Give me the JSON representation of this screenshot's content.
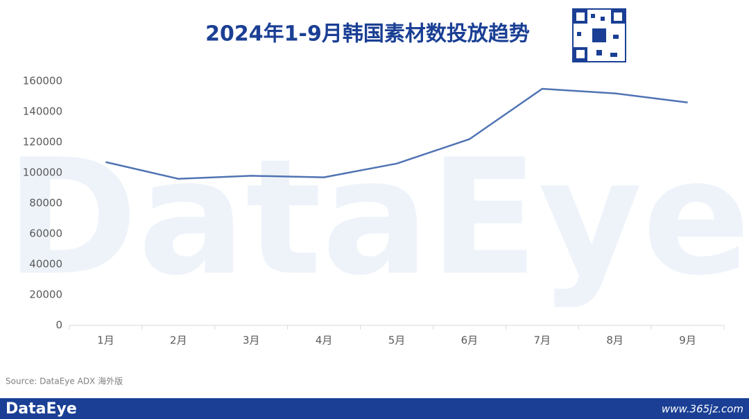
{
  "chart_data": {
    "type": "line",
    "title": "2024年1-9月韩国素材数投放趋势",
    "categories": [
      "1月",
      "2月",
      "3月",
      "4月",
      "5月",
      "6月",
      "7月",
      "8月",
      "9月"
    ],
    "values": [
      107000,
      96000,
      98000,
      97000,
      106000,
      122000,
      155000,
      152000,
      146000
    ],
    "color": "#4f73b3",
    "ylim": [
      0,
      160000
    ],
    "yticks": [
      0,
      20000,
      40000,
      60000,
      80000,
      100000,
      120000,
      140000,
      160000
    ],
    "grid": false
  },
  "watermark": "DataEye",
  "source": "Source: DataEye ADX 海外版",
  "footer": {
    "logo": "DataEye",
    "url": "www.365jz.com"
  }
}
